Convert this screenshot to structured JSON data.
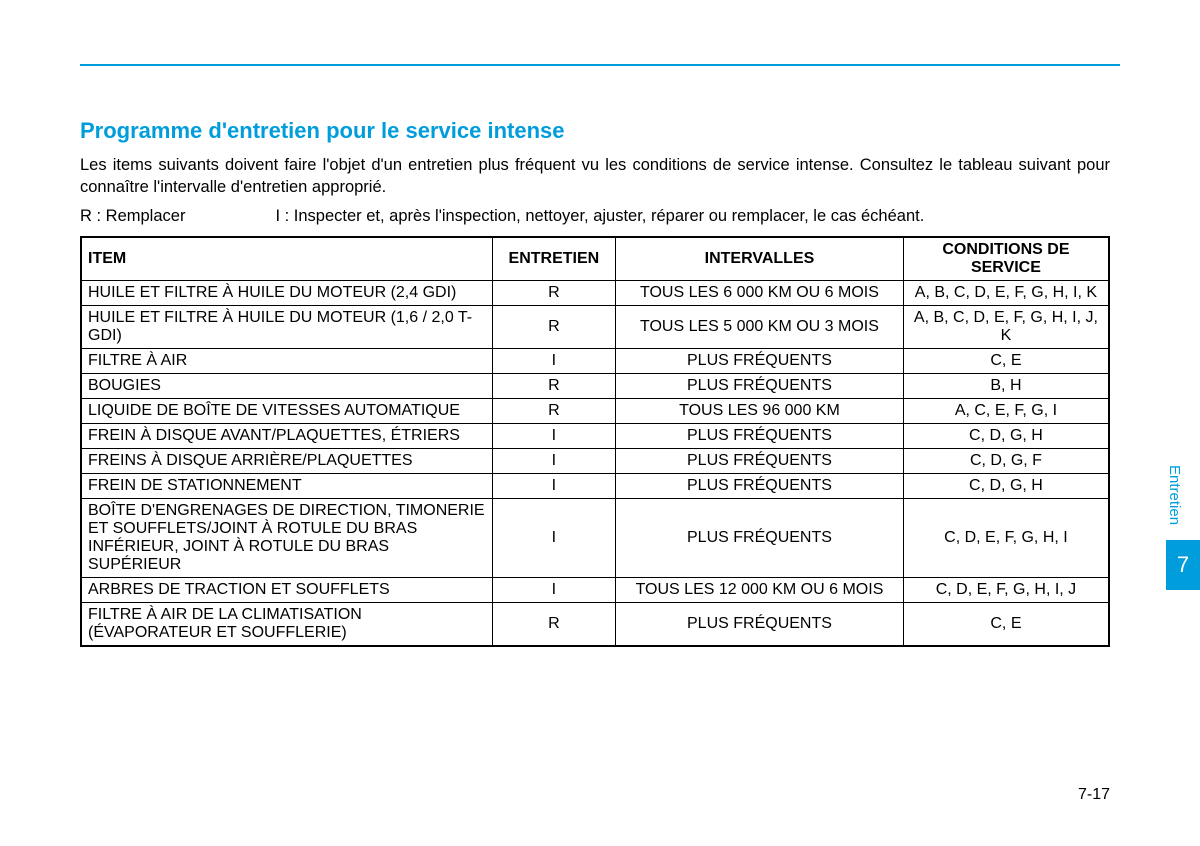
{
  "accent_color": "#009ddc",
  "section_title": "Programme d'entretien pour le service intense",
  "intro_text": "Les items suivants doivent faire l'objet d'un entretien plus fréquent vu les conditions de service intense. Consultez le tableau suivant pour connaître l'intervalle d'entretien approprié.",
  "legend_r": "R : Remplacer",
  "legend_i": "I : Inspecter et, après l'inspection, nettoyer, ajuster, réparer ou remplacer, le cas échéant.",
  "table": {
    "headers": {
      "item": "ITEM",
      "entretien": "ENTRETIEN",
      "intervalles": "INTERVALLES",
      "conditions": "CONDITIONS DE SERVICE"
    },
    "rows": [
      {
        "item": "HUILE ET FILTRE À HUILE DU MOTEUR (2,4 GDI)",
        "ent": "R",
        "int": "TOUS LES 6 000 KM OU 6 MOIS",
        "cond": "A, B, C, D, E, F, G, H, I, K"
      },
      {
        "item": "HUILE ET FILTRE À HUILE DU MOTEUR (1,6 / 2,0 T-GDI)",
        "ent": "R",
        "int": "TOUS LES 5 000 KM OU 3 MOIS",
        "cond": "A, B, C, D, E, F, G, H, I, J, K"
      },
      {
        "item": "FILTRE À AIR",
        "ent": "I",
        "int": "PLUS FRÉQUENTS",
        "cond": "C, E"
      },
      {
        "item": "BOUGIES",
        "ent": "R",
        "int": "PLUS FRÉQUENTS",
        "cond": "B, H"
      },
      {
        "item": "LIQUIDE DE BOÎTE DE VITESSES AUTOMATIQUE",
        "ent": "R",
        "int": "TOUS LES 96 000 KM",
        "cond": "A, C, E, F, G, I"
      },
      {
        "item": "FREIN À DISQUE AVANT/PLAQUETTES, ÉTRIERS",
        "ent": "I",
        "int": "PLUS FRÉQUENTS",
        "cond": "C, D, G, H"
      },
      {
        "item": "FREINS À DISQUE ARRIÈRE/PLAQUETTES",
        "ent": "I",
        "int": "PLUS FRÉQUENTS",
        "cond": "C, D, G, F"
      },
      {
        "item": "FREIN DE STATIONNEMENT",
        "ent": "I",
        "int": "PLUS FRÉQUENTS",
        "cond": "C, D, G, H"
      },
      {
        "item": "BOÎTE D'ENGRENAGES DE DIRECTION, TIMONERIE ET SOUFFLETS/JOINT À ROTULE DU BRAS INFÉRIEUR, JOINT À ROTULE DU BRAS SUPÉRIEUR",
        "ent": "I",
        "int": "PLUS FRÉQUENTS",
        "cond": "C, D, E, F, G, H, I"
      },
      {
        "item": "ARBRES DE TRACTION ET SOUFFLETS",
        "ent": "I",
        "int": "TOUS LES 12 000 KM OU 6 MOIS",
        "cond": "C, D, E, F, G, H, I, J"
      },
      {
        "item": "FILTRE À AIR DE LA CLIMATISATION (ÉVAPORATEUR ET SOUFFLERIE)",
        "ent": "R",
        "int": "PLUS FRÉQUENTS",
        "cond": "C, E"
      }
    ]
  },
  "side_tab": {
    "label": "Entretien",
    "number": "7"
  },
  "page_number": "7-17"
}
